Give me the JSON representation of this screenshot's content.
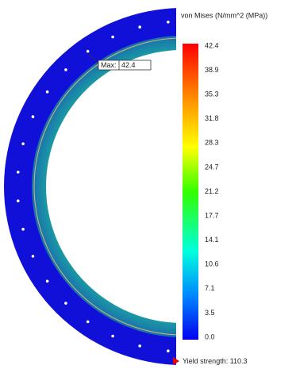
{
  "legend": {
    "title": "von Mises (N/mm^2 (MPa))",
    "ticks": [
      "42.4",
      "38.9",
      "35.3",
      "31.8",
      "28.3",
      "24.7",
      "21.2",
      "17.7",
      "14.1",
      "10.6",
      "7.1",
      "3.5",
      "0.0"
    ]
  },
  "max_label": {
    "label": "Max:",
    "value": "42.4"
  },
  "yield": {
    "label": "Yield strength: 110.3"
  }
}
